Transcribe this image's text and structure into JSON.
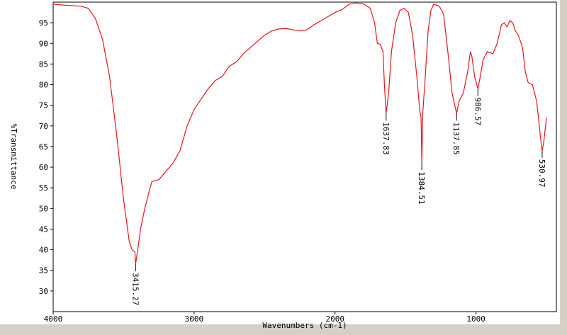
{
  "chart_data": {
    "type": "line",
    "x_label": "Wavenumbers (cm-1)",
    "y_label": "%Transmittance",
    "color": "#e8141b",
    "xlim": [
      4000,
      430
    ],
    "ylim": [
      25,
      100
    ],
    "xticks": [
      4000,
      3000,
      2000,
      1000
    ],
    "yticks": [
      30,
      35,
      40,
      45,
      50,
      55,
      60,
      65,
      70,
      75,
      80,
      85,
      90,
      95
    ],
    "x": [
      4000,
      3900,
      3800,
      3750,
      3700,
      3650,
      3600,
      3550,
      3500,
      3460,
      3440,
      3420,
      3415.27,
      3400,
      3380,
      3350,
      3320,
      3300,
      3250,
      3200,
      3150,
      3100,
      3050,
      3000,
      2950,
      2900,
      2850,
      2800,
      2750,
      2700,
      2650,
      2600,
      2550,
      2500,
      2450,
      2400,
      2350,
      2300,
      2250,
      2200,
      2150,
      2100,
      2050,
      2000,
      1950,
      1900,
      1850,
      1800,
      1750,
      1720,
      1700,
      1680,
      1660,
      1650,
      1637.83,
      1620,
      1600,
      1570,
      1540,
      1510,
      1480,
      1450,
      1420,
      1400,
      1390,
      1384.51,
      1378,
      1360,
      1340,
      1320,
      1300,
      1260,
      1230,
      1200,
      1170,
      1137.85,
      1120,
      1090,
      1060,
      1040,
      1030,
      1010,
      986.57,
      970,
      950,
      920,
      880,
      850,
      820,
      800,
      780,
      760,
      740,
      720,
      700,
      670,
      650,
      630,
      600,
      570,
      545,
      530.97,
      520,
      500
    ],
    "values": [
      99.5,
      99.2,
      99.0,
      98.5,
      96,
      91,
      82,
      68,
      52,
      42,
      40,
      39.5,
      36.5,
      40,
      45,
      50,
      54,
      56.5,
      57,
      59,
      61,
      64,
      70,
      74,
      76.5,
      79,
      81,
      82,
      84.5,
      85.5,
      87.5,
      89,
      90.5,
      92,
      93,
      93.5,
      93.6,
      93.3,
      93,
      93.3,
      94.5,
      95.5,
      96.5,
      97.5,
      98.2,
      99.5,
      99.8,
      99.6,
      98.5,
      95,
      90,
      89.8,
      88,
      80,
      73,
      78,
      88,
      95,
      98,
      98.5,
      97.5,
      92,
      82,
      74,
      72,
      61,
      73,
      82,
      93,
      98,
      99.5,
      99,
      97,
      88,
      78,
      73,
      76,
      78,
      83,
      88,
      87,
      82,
      79,
      82,
      86,
      88,
      87.5,
      90,
      94.5,
      95,
      94,
      95.5,
      95,
      93,
      92,
      89,
      83,
      80.5,
      80,
      76,
      68,
      64,
      66,
      72
    ],
    "annotations": [
      {
        "x": 3415.27,
        "y": 36.5
      },
      {
        "x": 1637.83,
        "y": 73
      },
      {
        "x": 1384.51,
        "y": 61
      },
      {
        "x": 1137.85,
        "y": 73
      },
      {
        "x": 986.57,
        "y": 79
      },
      {
        "x": 530.97,
        "y": 64
      }
    ]
  }
}
